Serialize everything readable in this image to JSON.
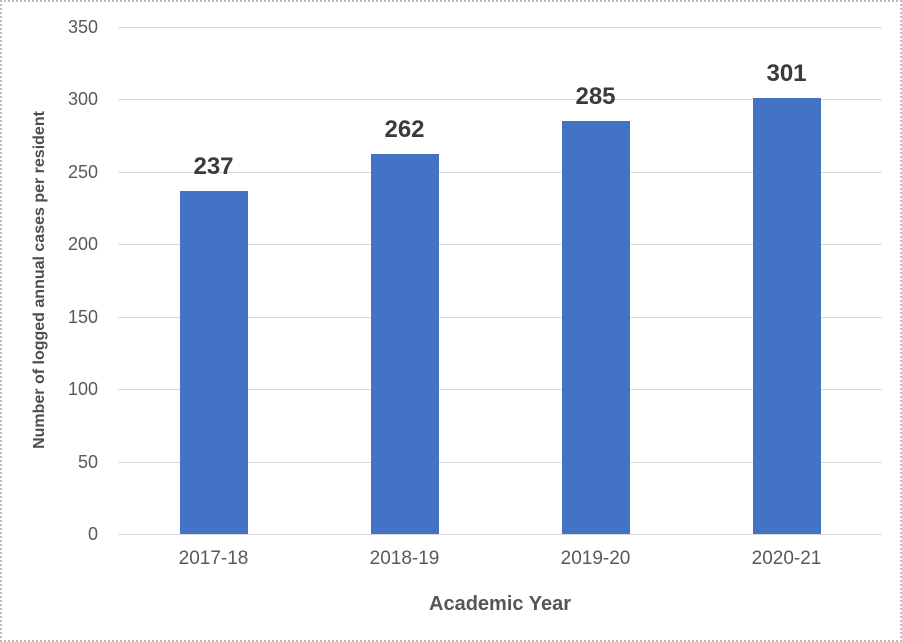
{
  "chart_data": {
    "type": "bar",
    "categories": [
      "2017-18",
      "2018-19",
      "2019-20",
      "2020-21"
    ],
    "values": [
      237,
      262,
      285,
      301
    ],
    "title": "",
    "xlabel": "Academic Year",
    "ylabel": "Number of logged annual cases per resident",
    "ylim": [
      0,
      350
    ],
    "yticks": [
      0,
      50,
      100,
      150,
      200,
      250,
      300,
      350
    ],
    "grid": true,
    "legend": "none",
    "data_labels": true,
    "colors": {
      "bar": "#4472C4",
      "gridline": "#D9D9D9",
      "tick_label": "#595959",
      "data_label": "#3b3b3b",
      "axis_title": "#4d4d4d"
    }
  }
}
